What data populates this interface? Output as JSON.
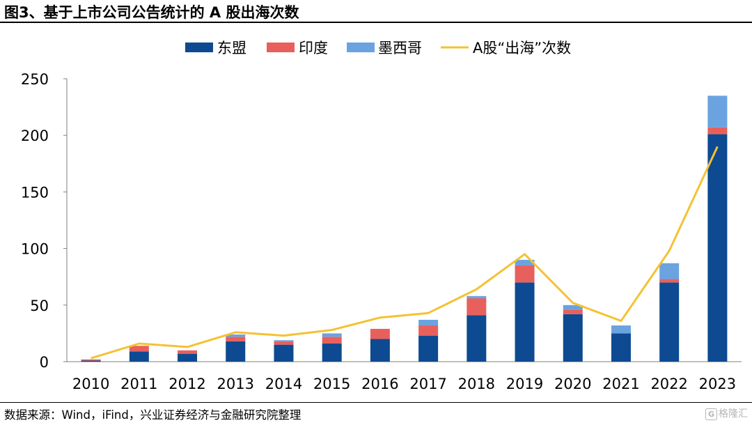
{
  "header": {
    "title": "图3、基于上市公司公告统计的 A 股出海次数"
  },
  "footer": {
    "source": "数据来源：Wind，iFind，兴业证券经济与金融研究院整理",
    "watermark": "格隆汇",
    "watermark_badge": "G"
  },
  "colors": {
    "asean": "#0d4a91",
    "india": "#e8605c",
    "mexico": "#6aa3e0",
    "line": "#f4c232"
  },
  "chart_data": {
    "type": "bar",
    "stacked": true,
    "categories": [
      "2010",
      "2011",
      "2012",
      "2013",
      "2014",
      "2015",
      "2016",
      "2017",
      "2018",
      "2019",
      "2020",
      "2021",
      "2022",
      "2023"
    ],
    "series": [
      {
        "name": "东盟",
        "type": "bar",
        "values": [
          1,
          9,
          7,
          18,
          15,
          16,
          20,
          23,
          41,
          70,
          42,
          25,
          70,
          201
        ]
      },
      {
        "name": "印度",
        "type": "bar",
        "values": [
          1,
          5,
          3,
          4,
          3,
          6,
          9,
          9,
          15,
          15,
          4,
          0,
          3,
          6
        ]
      },
      {
        "name": "墨西哥",
        "type": "bar",
        "values": [
          0,
          0,
          0,
          2,
          1,
          3,
          0,
          5,
          2,
          5,
          4,
          7,
          14,
          28
        ]
      },
      {
        "name": "A股“出海”次数",
        "type": "line",
        "values": [
          3,
          16,
          13,
          26,
          23,
          28,
          39,
          43,
          64,
          95,
          52,
          36,
          98,
          190
        ]
      }
    ],
    "y_ticks": [
      "0",
      "50",
      "100",
      "150",
      "200",
      "250"
    ],
    "ylim": [
      0,
      250
    ],
    "xlabel": "",
    "ylabel": "",
    "grid": false,
    "legend_position": "top"
  }
}
